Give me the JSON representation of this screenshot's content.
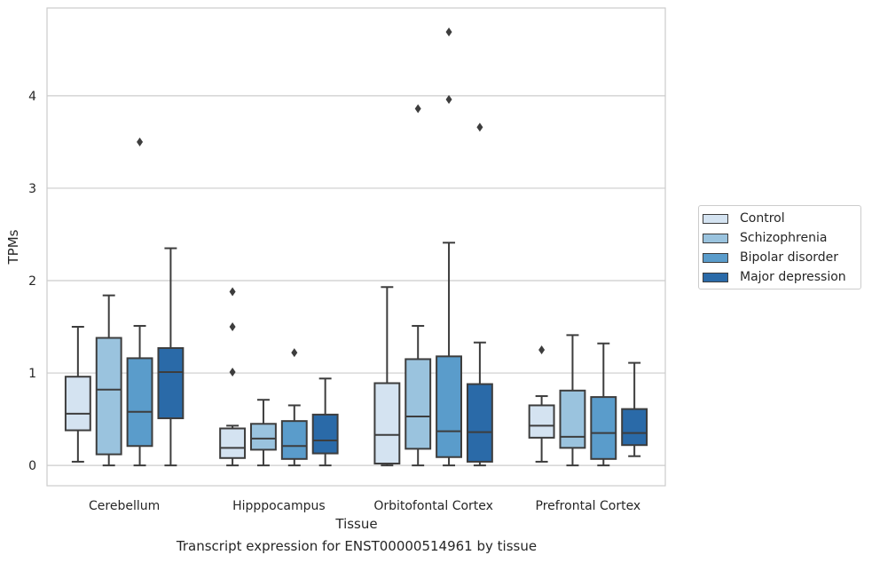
{
  "caption": "Transcript expression for ENST00000514961 by tissue",
  "chart_data": {
    "type": "box",
    "xlabel": "Tissue",
    "ylabel": "TPMs",
    "ylim": [
      -0.22,
      4.95
    ],
    "yticks": [
      0,
      1,
      2,
      3,
      4
    ],
    "grid": true,
    "legend_placement": "right",
    "categories": [
      "Cerebellum",
      "Hipppocampus",
      "Orbitofontal Cortex",
      "Prefrontal Cortex"
    ],
    "series": [
      {
        "name": "Control",
        "color": "#d4e3f1",
        "boxes": [
          {
            "whislo": 0.04,
            "q1": 0.38,
            "med": 0.56,
            "q3": 0.96,
            "whishi": 1.5,
            "fliers": []
          },
          {
            "whislo": 0.0,
            "q1": 0.08,
            "med": 0.19,
            "q3": 0.4,
            "whishi": 0.43,
            "fliers": [
              1.88,
              1.5,
              1.01
            ]
          },
          {
            "whislo": 0.0,
            "q1": 0.02,
            "med": 0.33,
            "q3": 0.89,
            "whishi": 1.93,
            "fliers": []
          },
          {
            "whislo": 0.04,
            "q1": 0.3,
            "med": 0.43,
            "q3": 0.65,
            "whishi": 0.75,
            "fliers": [
              1.25
            ]
          }
        ]
      },
      {
        "name": "Schizophrenia",
        "color": "#9ac3de",
        "boxes": [
          {
            "whislo": 0.0,
            "q1": 0.12,
            "med": 0.82,
            "q3": 1.38,
            "whishi": 1.84,
            "fliers": []
          },
          {
            "whislo": 0.0,
            "q1": 0.17,
            "med": 0.29,
            "q3": 0.45,
            "whishi": 0.71,
            "fliers": []
          },
          {
            "whislo": 0.0,
            "q1": 0.18,
            "med": 0.53,
            "q3": 1.15,
            "whishi": 1.51,
            "fliers": [
              3.86
            ]
          },
          {
            "whislo": 0.0,
            "q1": 0.19,
            "med": 0.31,
            "q3": 0.81,
            "whishi": 1.41,
            "fliers": []
          }
        ]
      },
      {
        "name": "Bipolar disorder",
        "color": "#5a9ccb",
        "boxes": [
          {
            "whislo": 0.0,
            "q1": 0.21,
            "med": 0.58,
            "q3": 1.16,
            "whishi": 1.51,
            "fliers": [
              3.5
            ]
          },
          {
            "whislo": 0.0,
            "q1": 0.07,
            "med": 0.21,
            "q3": 0.48,
            "whishi": 0.65,
            "fliers": [
              1.22
            ]
          },
          {
            "whislo": 0.0,
            "q1": 0.09,
            "med": 0.37,
            "q3": 1.18,
            "whishi": 2.41,
            "fliers": [
              4.69,
              3.96
            ]
          },
          {
            "whislo": 0.0,
            "q1": 0.07,
            "med": 0.35,
            "q3": 0.74,
            "whishi": 1.32,
            "fliers": []
          }
        ]
      },
      {
        "name": "Major depression",
        "color": "#2a6aa8",
        "boxes": [
          {
            "whislo": 0.0,
            "q1": 0.51,
            "med": 1.01,
            "q3": 1.27,
            "whishi": 2.35,
            "fliers": []
          },
          {
            "whislo": 0.0,
            "q1": 0.13,
            "med": 0.27,
            "q3": 0.55,
            "whishi": 0.94,
            "fliers": []
          },
          {
            "whislo": 0.0,
            "q1": 0.04,
            "med": 0.36,
            "q3": 0.88,
            "whishi": 1.33,
            "fliers": [
              3.66
            ]
          },
          {
            "whislo": 0.1,
            "q1": 0.22,
            "med": 0.35,
            "q3": 0.61,
            "whishi": 1.11,
            "fliers": []
          }
        ]
      }
    ]
  }
}
